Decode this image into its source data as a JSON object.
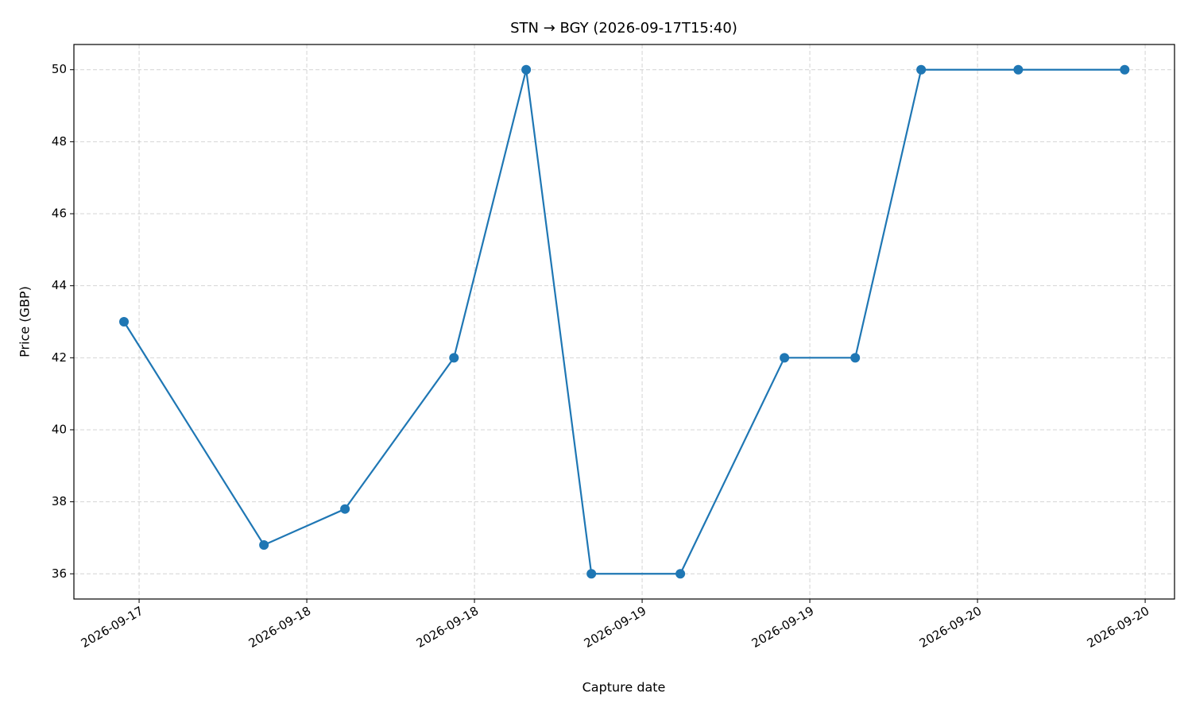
{
  "chart_data": {
    "type": "line",
    "title": "STN → BGY (2026-09-17T15:40)",
    "x_label": "Capture date",
    "y_label": "Price (GBP)",
    "x": [
      "2026-09-17T10:55",
      "2026-09-17T20:56",
      "2026-09-18T02:44",
      "2026-09-18T10:32",
      "2026-09-18T15:42",
      "2026-09-18T20:22",
      "2026-09-19T02:44",
      "2026-09-19T10:11",
      "2026-09-19T15:15",
      "2026-09-19T19:58",
      "2026-09-20T02:55",
      "2026-09-20T10:32"
    ],
    "values": [
      43,
      36.8,
      37.8,
      42,
      50,
      36,
      36,
      42,
      42,
      50,
      50,
      50
    ],
    "color": "#1f77b4",
    "xlim": [
      "2026-09-17T07:20",
      "2026-09-20T14:06"
    ],
    "xticks": [
      {
        "value": "2026-09-17T12:00",
        "label": "2026-09-17"
      },
      {
        "value": "2026-09-18T00:00",
        "label": "2026-09-18"
      },
      {
        "value": "2026-09-18T12:00",
        "label": "2026-09-18"
      },
      {
        "value": "2026-09-19T00:00",
        "label": "2026-09-19"
      },
      {
        "value": "2026-09-19T12:00",
        "label": "2026-09-19"
      },
      {
        "value": "2026-09-20T00:00",
        "label": "2026-09-20"
      },
      {
        "value": "2026-09-20T12:00",
        "label": "2026-09-20"
      }
    ],
    "ylim": [
      35.3,
      50.7
    ],
    "yticks": [
      36,
      38,
      40,
      42,
      44,
      46,
      48,
      50
    ],
    "grid": true
  }
}
